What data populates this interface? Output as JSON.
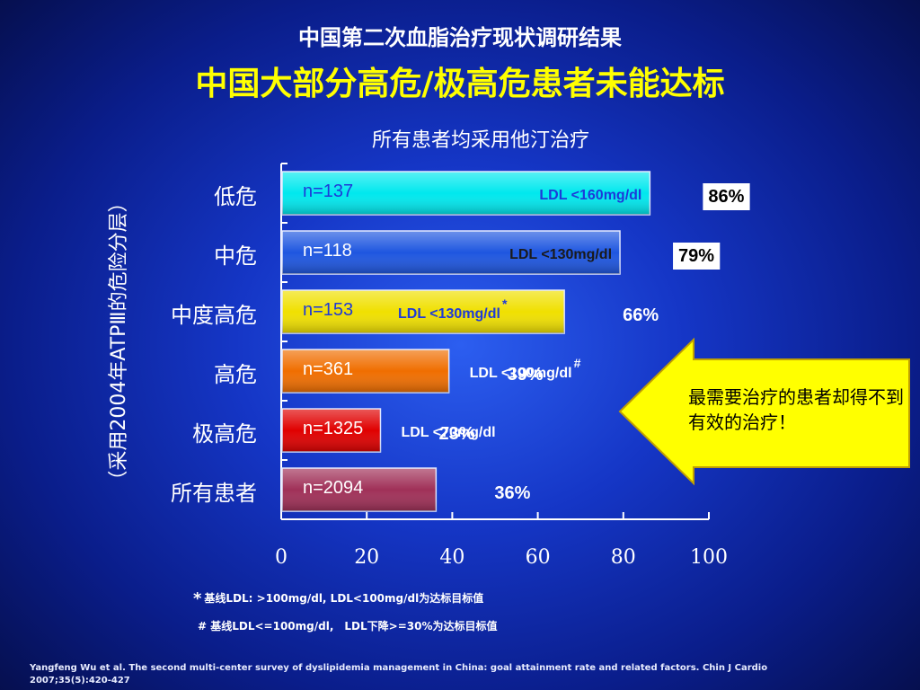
{
  "title1": "中国第二次血脂治疗现状调研结果",
  "title2": "中国大部分高危/极高危患者未能达标",
  "subtitle": "所有患者均采用他汀治疗",
  "ylabel": "（采用2004年ATPⅢ的危险分层）",
  "callout": "最需要治疗的患者却得不到有效的治疗！",
  "footnote1": {
    "mark": "*",
    "text": "基线LDL: >100mg/dl, LDL<100mg/dl为达标目标值"
  },
  "footnote2": "# 基线LDL<=100mg/dl,　LDL下降>=30%为达标目标值",
  "citation": "Yangfeng Wu et al. The second multi-center survey of dyslipidemia management in China: goal attainment rate and related factors. Chin J Cardio 2007;35(5):420-427",
  "chart_data": {
    "type": "bar",
    "orientation": "horizontal",
    "categories": [
      "低危",
      "中危",
      "中度高危",
      "高危",
      "极高危",
      "所有患者"
    ],
    "values": [
      86,
      79,
      66,
      39,
      23,
      36
    ],
    "value_labels": [
      "86%",
      "79%",
      "66%",
      "39%",
      "23%",
      "36%"
    ],
    "n_labels": [
      "n=137",
      "n=118",
      "n=153",
      "n=361",
      "n=1325",
      "n=2094"
    ],
    "targets": [
      "LDL <160mg/dl",
      "LDL <130mg/dl",
      "LDL <130mg/dl",
      "LDL <100mg/dl",
      "LDL <70mg/dl",
      ""
    ],
    "target_marks": [
      "",
      "",
      "*",
      "#",
      "",
      ""
    ],
    "bar_colors": [
      "#00e8ee",
      "#1e56e0",
      "#f0e000",
      "#f06e00",
      "#e00000",
      "#a03058"
    ],
    "n_colors": [
      "#1e3ad8",
      "#ffffff",
      "#1e3ad8",
      "#ffffff",
      "#ffffff",
      "#ffffff"
    ],
    "xlim": [
      0,
      100
    ],
    "xticks": [
      0,
      20,
      40,
      60,
      80,
      100
    ],
    "grid": false
  }
}
